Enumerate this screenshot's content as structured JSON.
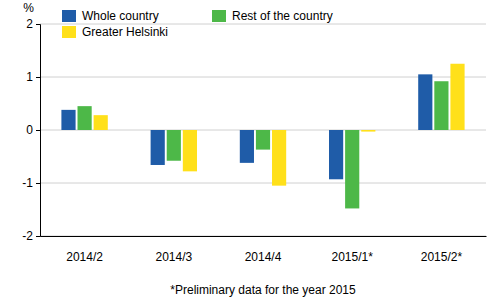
{
  "chart_data": {
    "type": "bar",
    "y_label": "%",
    "caption": "*Preliminary data for the year 2015",
    "categories": [
      "2014/2",
      "2014/3",
      "2014/4",
      "2015/1*",
      "2015/2*"
    ],
    "series": [
      {
        "name": "Whole country",
        "color": "#1f5ca8",
        "values": [
          0.38,
          -0.66,
          -0.62,
          -0.93,
          1.05
        ]
      },
      {
        "name": "Rest of the country",
        "color": "#4db848",
        "values": [
          0.45,
          -0.58,
          -0.37,
          -1.48,
          0.92
        ]
      },
      {
        "name": "Greater Helsinki",
        "color": "#ffe01a",
        "values": [
          0.28,
          -0.78,
          -1.05,
          -0.03,
          1.25
        ]
      }
    ],
    "ylim": [
      -2,
      2
    ],
    "yticks": [
      -2,
      -1,
      0,
      1,
      2
    ],
    "grid": true,
    "legend": "upper left"
  }
}
